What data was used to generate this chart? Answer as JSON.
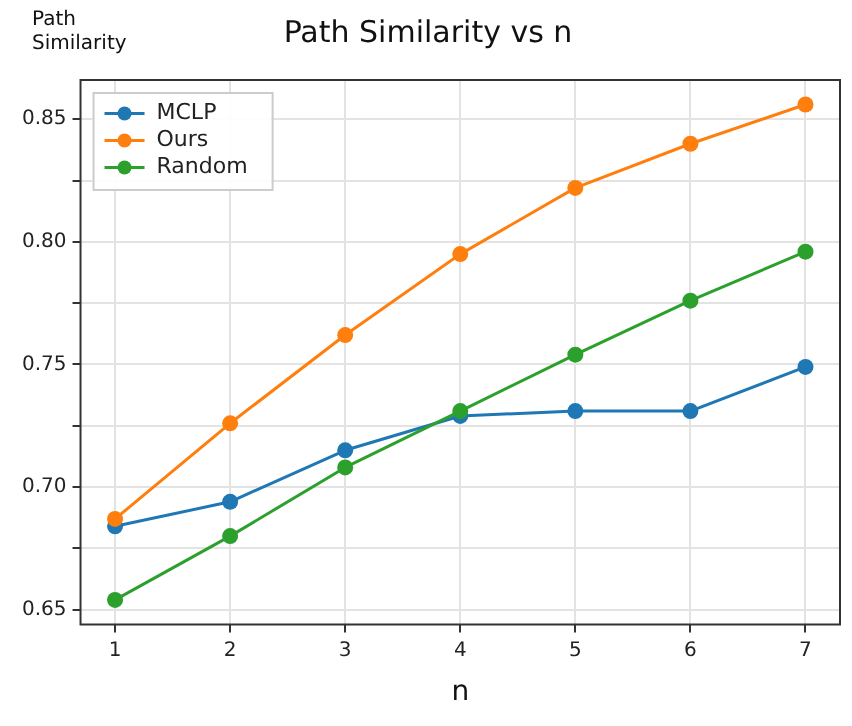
{
  "chart_data": {
    "type": "line",
    "title": "Path Similarity vs n",
    "xlabel": "n",
    "ylabel": "Path\nSimilarity",
    "x": [
      1,
      2,
      3,
      4,
      5,
      6,
      7
    ],
    "series": [
      {
        "name": "MCLP",
        "color": "#1f77b4",
        "values": [
          0.684,
          0.694,
          0.715,
          0.729,
          0.731,
          0.731,
          0.749
        ]
      },
      {
        "name": "Ours",
        "color": "#ff7f0e",
        "values": [
          0.687,
          0.726,
          0.762,
          0.795,
          0.822,
          0.84,
          0.856
        ]
      },
      {
        "name": "Random",
        "color": "#2ca02c",
        "values": [
          0.654,
          0.68,
          0.708,
          0.731,
          0.754,
          0.776,
          0.796
        ]
      }
    ],
    "xlim": [
      0.7,
      7.3
    ],
    "xticks": [
      1,
      2,
      3,
      4,
      5,
      6,
      7
    ],
    "ylim": [
      0.644,
      0.866
    ],
    "yticks": [
      {
        "value": 0.65,
        "label": "0.65"
      },
      {
        "value": 0.675,
        "label": null
      },
      {
        "value": 0.7,
        "label": "0.70"
      },
      {
        "value": 0.725,
        "label": null
      },
      {
        "value": 0.75,
        "label": "0.75"
      },
      {
        "value": 0.775,
        "label": null
      },
      {
        "value": 0.8,
        "label": "0.80"
      },
      {
        "value": 0.825,
        "label": null
      },
      {
        "value": 0.85,
        "label": "0.85"
      }
    ],
    "grid": true,
    "legend": "top left",
    "marker": "circle",
    "line_style": "solid"
  }
}
